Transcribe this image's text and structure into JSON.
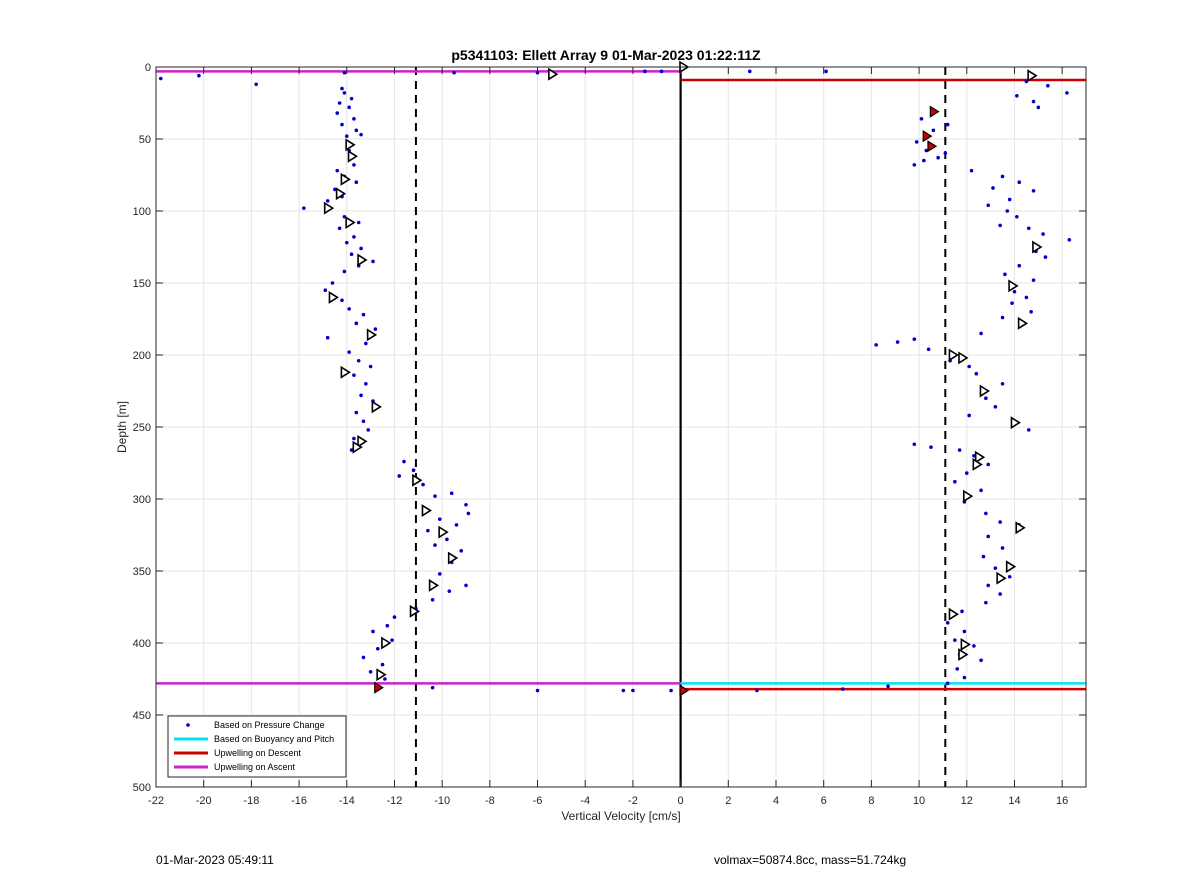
{
  "chart_data": {
    "type": "scatter",
    "title": "p5341103: Ellett Array 9 01-Mar-2023 01:22:11Z",
    "xlabel": "Vertical Velocity [cm/s]",
    "ylabel": "Depth [m]",
    "xlim": [
      -22,
      17
    ],
    "ylim": [
      0,
      500
    ],
    "y_reversed": true,
    "grid": true,
    "legend_position": "bottom-left",
    "xticks": [
      -22,
      -20,
      -18,
      -16,
      -14,
      -12,
      -10,
      -8,
      -6,
      -4,
      -2,
      0,
      2,
      4,
      6,
      8,
      10,
      12,
      14,
      16
    ],
    "yticks": [
      0,
      50,
      100,
      150,
      200,
      250,
      300,
      350,
      400,
      450,
      500
    ],
    "legend": [
      {
        "label": "Based on Pressure Change",
        "color": "#0000cc",
        "kind": "dot"
      },
      {
        "label": "Based on Buoyancy and Pitch",
        "color": "#00e5ee",
        "kind": "line"
      },
      {
        "label": "Upwelling on Descent",
        "color": "#cc0000",
        "kind": "line"
      },
      {
        "label": "Upwelling on Ascent",
        "color": "#cc22cc",
        "kind": "line"
      }
    ],
    "reference_lines": {
      "zero_x": 0,
      "dashed_x": [
        -11.1,
        11.1
      ]
    },
    "series": [
      {
        "name": "Based on Pressure Change",
        "color": "#0000cc",
        "points": [
          [
            -21.8,
            8
          ],
          [
            -20.2,
            6
          ],
          [
            -17.8,
            12
          ],
          [
            -14.1,
            4
          ],
          [
            -9.5,
            4
          ],
          [
            -6,
            4
          ],
          [
            -1.5,
            3
          ],
          [
            -0.8,
            3
          ],
          [
            2.9,
            3
          ],
          [
            6.1,
            3
          ],
          [
            -14.2,
            15
          ],
          [
            -14.1,
            18
          ],
          [
            -13.8,
            22
          ],
          [
            -14.3,
            25
          ],
          [
            -13.9,
            28
          ],
          [
            -14.4,
            32
          ],
          [
            -13.7,
            36
          ],
          [
            -14.2,
            40
          ],
          [
            -13.6,
            44
          ],
          [
            -14.0,
            48
          ],
          [
            -13.4,
            47
          ],
          [
            -13.9,
            58
          ],
          [
            -13.7,
            68
          ],
          [
            -14.4,
            72
          ],
          [
            -14.1,
            76
          ],
          [
            -13.6,
            80
          ],
          [
            -14.5,
            85
          ],
          [
            -14.2,
            90
          ],
          [
            -14.8,
            93
          ],
          [
            -15.8,
            98
          ],
          [
            -14.1,
            104
          ],
          [
            -13.5,
            108
          ],
          [
            -14.3,
            112
          ],
          [
            -13.7,
            118
          ],
          [
            -14.0,
            122
          ],
          [
            -13.4,
            126
          ],
          [
            -13.8,
            130
          ],
          [
            -12.9,
            135
          ],
          [
            -13.5,
            138
          ],
          [
            -14.1,
            142
          ],
          [
            -14.6,
            150
          ],
          [
            -14.9,
            155
          ],
          [
            -14.2,
            162
          ],
          [
            -13.9,
            168
          ],
          [
            -13.3,
            172
          ],
          [
            -13.6,
            178
          ],
          [
            -12.8,
            182
          ],
          [
            -14.8,
            188
          ],
          [
            -13.2,
            192
          ],
          [
            -13.9,
            198
          ],
          [
            -13.5,
            204
          ],
          [
            -13.0,
            208
          ],
          [
            -13.7,
            214
          ],
          [
            -13.2,
            220
          ],
          [
            -13.4,
            228
          ],
          [
            -12.9,
            232
          ],
          [
            -13.6,
            240
          ],
          [
            -13.3,
            246
          ],
          [
            -13.1,
            252
          ],
          [
            -13.7,
            258
          ],
          [
            -13.8,
            266
          ],
          [
            -11.6,
            274
          ],
          [
            -11.2,
            280
          ],
          [
            -11.8,
            284
          ],
          [
            -10.8,
            290
          ],
          [
            -10.3,
            298
          ],
          [
            -9.6,
            296
          ],
          [
            -9.0,
            304
          ],
          [
            -8.9,
            310
          ],
          [
            -10.1,
            314
          ],
          [
            -9.4,
            318
          ],
          [
            -10.6,
            322
          ],
          [
            -9.8,
            328
          ],
          [
            -10.3,
            332
          ],
          [
            -9.2,
            336
          ],
          [
            -9.6,
            344
          ],
          [
            -10.1,
            352
          ],
          [
            -9.0,
            360
          ],
          [
            -9.7,
            364
          ],
          [
            -10.4,
            370
          ],
          [
            -11.1,
            376
          ],
          [
            -12.0,
            382
          ],
          [
            -12.3,
            388
          ],
          [
            -12.9,
            392
          ],
          [
            -12.1,
            398
          ],
          [
            -12.7,
            404
          ],
          [
            -13.3,
            410
          ],
          [
            -12.5,
            415
          ],
          [
            -13.0,
            420
          ],
          [
            -12.4,
            425
          ],
          [
            -10.4,
            431
          ],
          [
            -6,
            433
          ],
          [
            -2.4,
            433
          ],
          [
            -2.0,
            433
          ],
          [
            -0.4,
            433
          ],
          [
            3.2,
            433
          ],
          [
            6.8,
            432
          ],
          [
            8.7,
            430
          ],
          [
            14.5,
            10
          ],
          [
            15.4,
            13
          ],
          [
            16.2,
            18
          ],
          [
            14.1,
            20
          ],
          [
            14.8,
            24
          ],
          [
            15.0,
            28
          ],
          [
            10.1,
            36
          ],
          [
            11.2,
            40
          ],
          [
            10.6,
            44
          ],
          [
            9.9,
            52
          ],
          [
            10.3,
            58
          ],
          [
            11.1,
            60
          ],
          [
            10.2,
            65
          ],
          [
            9.8,
            68
          ],
          [
            10.8,
            63
          ],
          [
            12.2,
            72
          ],
          [
            13.5,
            76
          ],
          [
            14.2,
            80
          ],
          [
            13.1,
            84
          ],
          [
            14.8,
            86
          ],
          [
            13.8,
            92
          ],
          [
            12.9,
            96
          ],
          [
            13.7,
            100
          ],
          [
            14.1,
            104
          ],
          [
            13.4,
            110
          ],
          [
            14.6,
            112
          ],
          [
            15.2,
            116
          ],
          [
            16.3,
            120
          ],
          [
            14.9,
            128
          ],
          [
            15.3,
            132
          ],
          [
            14.2,
            138
          ],
          [
            13.6,
            144
          ],
          [
            14.8,
            148
          ],
          [
            14.0,
            156
          ],
          [
            14.5,
            160
          ],
          [
            13.9,
            164
          ],
          [
            14.7,
            170
          ],
          [
            13.5,
            174
          ],
          [
            12.6,
            185
          ],
          [
            8.2,
            193
          ],
          [
            9.1,
            191
          ],
          [
            9.8,
            189
          ],
          [
            10.4,
            196
          ],
          [
            11.3,
            204
          ],
          [
            12.1,
            208
          ],
          [
            12.4,
            213
          ],
          [
            13.5,
            220
          ],
          [
            12.8,
            230
          ],
          [
            13.2,
            236
          ],
          [
            12.1,
            242
          ],
          [
            14.6,
            252
          ],
          [
            9.8,
            262
          ],
          [
            10.5,
            264
          ],
          [
            11.7,
            266
          ],
          [
            12.3,
            270
          ],
          [
            12.9,
            276
          ],
          [
            12.0,
            282
          ],
          [
            11.5,
            288
          ],
          [
            12.6,
            294
          ],
          [
            11.9,
            302
          ],
          [
            12.8,
            310
          ],
          [
            13.4,
            316
          ],
          [
            14.2,
            318
          ],
          [
            12.9,
            326
          ],
          [
            13.5,
            334
          ],
          [
            12.7,
            340
          ],
          [
            13.2,
            348
          ],
          [
            13.8,
            354
          ],
          [
            12.9,
            360
          ],
          [
            13.4,
            366
          ],
          [
            12.8,
            372
          ],
          [
            11.8,
            378
          ],
          [
            11.2,
            386
          ],
          [
            11.9,
            392
          ],
          [
            11.5,
            398
          ],
          [
            12.3,
            402
          ],
          [
            11.7,
            408
          ],
          [
            12.6,
            412
          ],
          [
            11.6,
            418
          ],
          [
            11.9,
            424
          ],
          [
            11.2,
            428
          ]
        ]
      },
      {
        "name": "Based on Buoyancy and Pitch",
        "color": "#000000",
        "marker": "triangle",
        "points": [
          [
            0.1,
            0
          ],
          [
            -5.4,
            5
          ],
          [
            -13.9,
            54
          ],
          [
            -13.8,
            62
          ],
          [
            -14.1,
            78
          ],
          [
            -14.3,
            88
          ],
          [
            -14.8,
            98
          ],
          [
            -13.9,
            108
          ],
          [
            -13.4,
            134
          ],
          [
            -14.6,
            160
          ],
          [
            -13.0,
            186
          ],
          [
            -14.1,
            212
          ],
          [
            -12.8,
            236
          ],
          [
            -13.4,
            260
          ],
          [
            -13.6,
            264
          ],
          [
            -11.1,
            287
          ],
          [
            -10.7,
            308
          ],
          [
            -10.0,
            323
          ],
          [
            -9.6,
            341
          ],
          [
            -10.4,
            360
          ],
          [
            -11.2,
            378
          ],
          [
            -12.4,
            400
          ],
          [
            -12.6,
            422
          ],
          [
            14.7,
            6
          ],
          [
            14.9,
            125
          ],
          [
            13.9,
            152
          ],
          [
            14.3,
            178
          ],
          [
            11.4,
            200
          ],
          [
            11.8,
            202
          ],
          [
            12.7,
            225
          ],
          [
            14.0,
            247
          ],
          [
            12.5,
            271
          ],
          [
            12.4,
            276
          ],
          [
            12.0,
            298
          ],
          [
            14.2,
            320
          ],
          [
            13.8,
            347
          ],
          [
            13.4,
            355
          ],
          [
            11.4,
            380
          ],
          [
            11.9,
            401
          ],
          [
            11.8,
            408
          ]
        ]
      },
      {
        "name": "Red markers",
        "color": "#cc0000",
        "marker": "triangle-filled",
        "points": [
          [
            10.6,
            31
          ],
          [
            10.3,
            48
          ],
          [
            10.5,
            55
          ],
          [
            -12.7,
            431
          ],
          [
            0.1,
            433
          ]
        ]
      }
    ],
    "horizontal_segments": [
      {
        "name": "Upwelling on Ascent",
        "color": "#cc22cc",
        "x0": -22,
        "x1": 0,
        "y": 3
      },
      {
        "name": "Upwelling on Descent",
        "color": "#cc0000",
        "x0": 0,
        "x1": 17,
        "y": 9
      },
      {
        "name": "Upwelling on Ascent",
        "color": "#cc22cc",
        "x0": -22,
        "x1": 0,
        "y": 428
      },
      {
        "name": "Based on Buoyancy and Pitch",
        "color": "#00e5ee",
        "x0": 0,
        "x1": 17,
        "y": 428
      },
      {
        "name": "Upwelling on Descent",
        "color": "#cc0000",
        "x0": 0,
        "x1": 17,
        "y": 432
      }
    ]
  },
  "footer": {
    "left": "01-Mar-2023 05:49:11",
    "right": "volmax=50874.8cc, mass=51.724kg"
  }
}
